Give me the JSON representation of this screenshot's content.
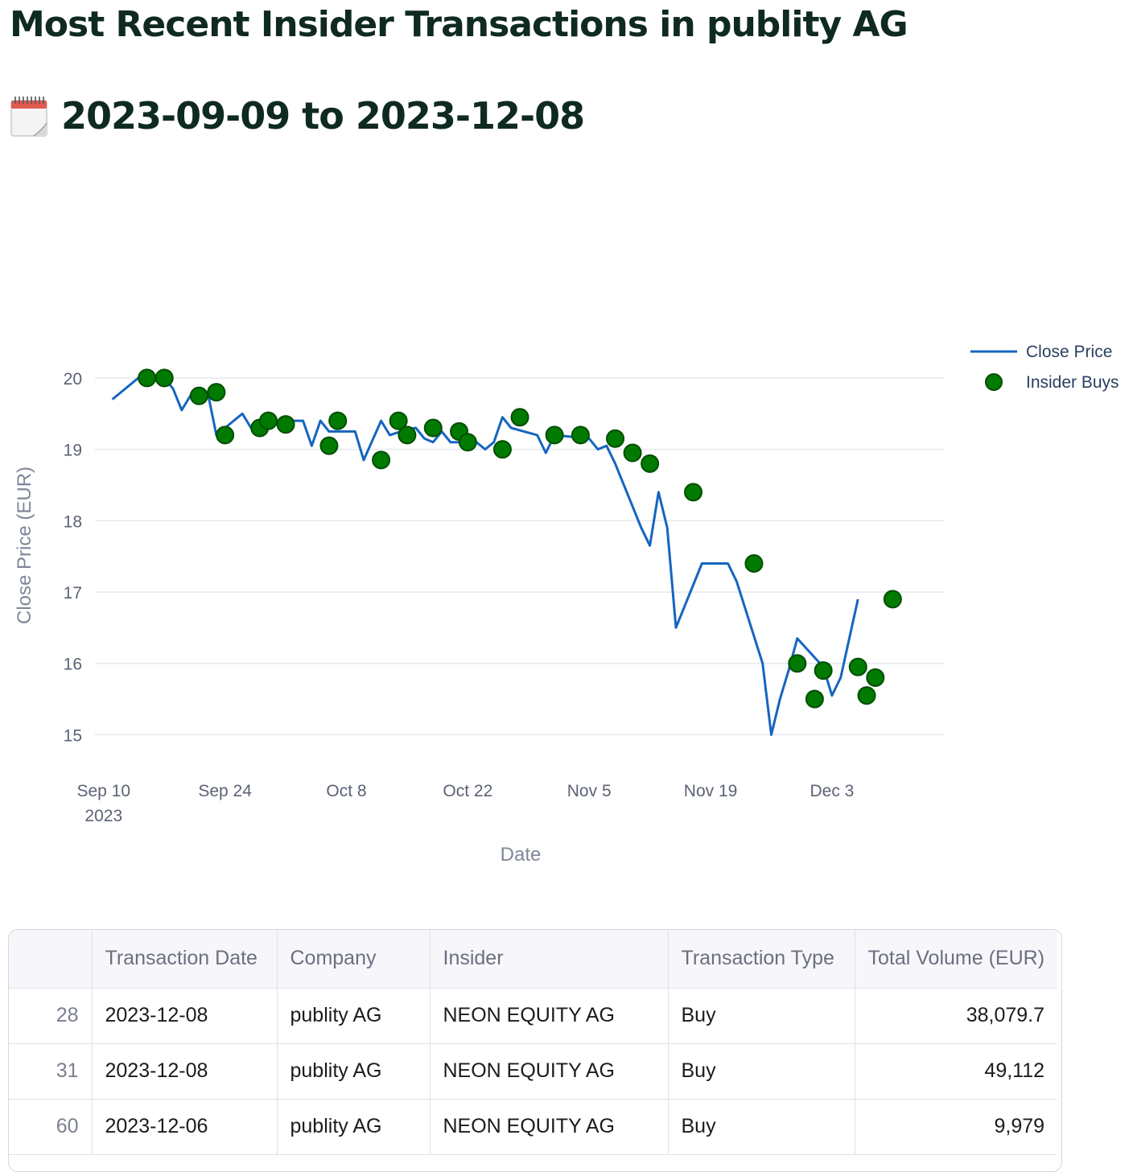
{
  "page": {
    "title": "Most Recent Insider Transactions in publity AG",
    "date_range": "2023-09-09 to 2023-12-08",
    "calendar_icon": "calendar-icon"
  },
  "chart_data": {
    "type": "line",
    "ylabel": "Close Price (EUR)",
    "xlabel": "Date",
    "ylim": [
      14.7,
      20.45
    ],
    "xlim": [
      "2023-09-09",
      "2023-12-16"
    ],
    "y_ticks": [
      15,
      16,
      17,
      18,
      19,
      20
    ],
    "x_ticks": [
      {
        "date": "2023-09-10",
        "label": "Sep 10",
        "sub": "2023"
      },
      {
        "date": "2023-09-24",
        "label": "Sep 24",
        "sub": ""
      },
      {
        "date": "2023-10-08",
        "label": "Oct 8",
        "sub": ""
      },
      {
        "date": "2023-10-22",
        "label": "Oct 22",
        "sub": ""
      },
      {
        "date": "2023-11-05",
        "label": "Nov 5",
        "sub": ""
      },
      {
        "date": "2023-11-19",
        "label": "Nov 19",
        "sub": ""
      },
      {
        "date": "2023-12-03",
        "label": "Dec 3",
        "sub": ""
      }
    ],
    "grid": true,
    "legend_position": "top-right",
    "colors": {
      "line": "#1565c0",
      "marker": "#007a00",
      "marker_edge": "#004d00"
    },
    "series": [
      {
        "name": "Close Price",
        "mode": "line",
        "points": [
          [
            "2023-09-11",
            19.7
          ],
          [
            "2023-09-14",
            20.0
          ],
          [
            "2023-09-15",
            20.0
          ],
          [
            "2023-09-16",
            20.0
          ],
          [
            "2023-09-17",
            20.0
          ],
          [
            "2023-09-18",
            19.85
          ],
          [
            "2023-09-19",
            19.55
          ],
          [
            "2023-09-20",
            19.75
          ],
          [
            "2023-09-21",
            19.78
          ],
          [
            "2023-09-22",
            19.8
          ],
          [
            "2023-09-23",
            19.2
          ],
          [
            "2023-09-25",
            19.4
          ],
          [
            "2023-09-26",
            19.5
          ],
          [
            "2023-09-27",
            19.3
          ],
          [
            "2023-09-28",
            19.4
          ],
          [
            "2023-09-29",
            19.35
          ],
          [
            "2023-09-30",
            19.35
          ],
          [
            "2023-10-02",
            19.4
          ],
          [
            "2023-10-03",
            19.4
          ],
          [
            "2023-10-04",
            19.05
          ],
          [
            "2023-10-05",
            19.4
          ],
          [
            "2023-10-06",
            19.25
          ],
          [
            "2023-10-09",
            19.25
          ],
          [
            "2023-10-10",
            18.85
          ],
          [
            "2023-10-12",
            19.4
          ],
          [
            "2023-10-13",
            19.2
          ],
          [
            "2023-10-15",
            19.28
          ],
          [
            "2023-10-16",
            19.3
          ],
          [
            "2023-10-17",
            19.15
          ],
          [
            "2023-10-18",
            19.1
          ],
          [
            "2023-10-19",
            19.25
          ],
          [
            "2023-10-20",
            19.1
          ],
          [
            "2023-10-23",
            19.1
          ],
          [
            "2023-10-24",
            19.0
          ],
          [
            "2023-10-25",
            19.1
          ],
          [
            "2023-10-26",
            19.45
          ],
          [
            "2023-10-27",
            19.3
          ],
          [
            "2023-10-30",
            19.2
          ],
          [
            "2023-10-31",
            18.95
          ],
          [
            "2023-11-01",
            19.2
          ],
          [
            "2023-11-05",
            19.15
          ],
          [
            "2023-11-06",
            19.0
          ],
          [
            "2023-11-07",
            19.05
          ],
          [
            "2023-11-08",
            18.8
          ],
          [
            "2023-11-11",
            17.9
          ],
          [
            "2023-11-12",
            17.65
          ],
          [
            "2023-11-13",
            18.4
          ],
          [
            "2023-11-14",
            17.9
          ],
          [
            "2023-11-15",
            16.5
          ],
          [
            "2023-11-18",
            17.4
          ],
          [
            "2023-11-19",
            17.4
          ],
          [
            "2023-11-20",
            17.4
          ],
          [
            "2023-11-21",
            17.4
          ],
          [
            "2023-11-22",
            17.15
          ],
          [
            "2023-11-25",
            16.0
          ],
          [
            "2023-11-26",
            15.0
          ],
          [
            "2023-11-27",
            15.5
          ],
          [
            "2023-11-28",
            15.9
          ],
          [
            "2023-11-29",
            16.35
          ],
          [
            "2023-12-02",
            15.95
          ],
          [
            "2023-12-03",
            15.55
          ],
          [
            "2023-12-04",
            15.8
          ],
          [
            "2023-12-06",
            16.9
          ]
        ]
      },
      {
        "name": "Insider Buys",
        "mode": "markers",
        "points": [
          [
            "2023-09-15",
            20.0
          ],
          [
            "2023-09-17",
            20.0
          ],
          [
            "2023-09-21",
            19.75
          ],
          [
            "2023-09-23",
            19.8
          ],
          [
            "2023-09-24",
            19.2
          ],
          [
            "2023-09-28",
            19.3
          ],
          [
            "2023-09-29",
            19.4
          ],
          [
            "2023-10-01",
            19.35
          ],
          [
            "2023-10-06",
            19.05
          ],
          [
            "2023-10-07",
            19.4
          ],
          [
            "2023-10-12",
            18.85
          ],
          [
            "2023-10-14",
            19.4
          ],
          [
            "2023-10-15",
            19.2
          ],
          [
            "2023-10-18",
            19.3
          ],
          [
            "2023-10-21",
            19.25
          ],
          [
            "2023-10-22",
            19.1
          ],
          [
            "2023-10-26",
            19.0
          ],
          [
            "2023-10-28",
            19.45
          ],
          [
            "2023-11-01",
            19.2
          ],
          [
            "2023-11-04",
            19.2
          ],
          [
            "2023-11-08",
            19.15
          ],
          [
            "2023-11-10",
            18.95
          ],
          [
            "2023-11-12",
            18.8
          ],
          [
            "2023-11-17",
            18.4
          ],
          [
            "2023-11-24",
            17.4
          ],
          [
            "2023-11-29",
            16.0
          ],
          [
            "2023-12-01",
            15.5
          ],
          [
            "2023-12-02",
            15.9
          ],
          [
            "2023-12-06",
            15.95
          ],
          [
            "2023-12-07",
            15.55
          ],
          [
            "2023-12-08",
            15.8
          ],
          [
            "2023-12-10",
            16.9
          ]
        ]
      }
    ]
  },
  "table": {
    "columns": [
      "",
      "Transaction Date",
      "Company",
      "Insider",
      "Transaction Type",
      "Total Volume (EUR)"
    ],
    "rows": [
      {
        "idx": "28",
        "date": "2023-12-08",
        "company": "publity AG",
        "insider": "NEON EQUITY AG",
        "type": "Buy",
        "volume": "38,079.7"
      },
      {
        "idx": "31",
        "date": "2023-12-08",
        "company": "publity AG",
        "insider": "NEON EQUITY AG",
        "type": "Buy",
        "volume": "49,112"
      },
      {
        "idx": "60",
        "date": "2023-12-06",
        "company": "publity AG",
        "insider": "NEON EQUITY AG",
        "type": "Buy",
        "volume": "9,979"
      }
    ]
  }
}
